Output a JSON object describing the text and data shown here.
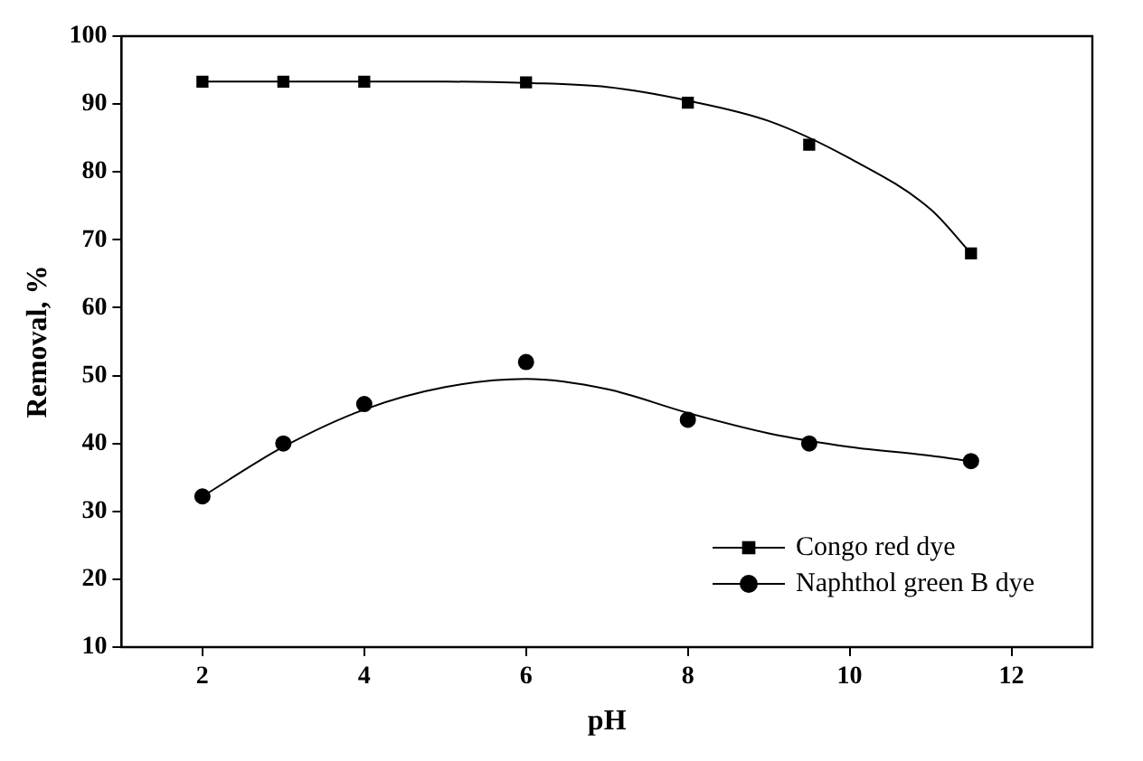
{
  "chart_data": {
    "type": "scatter",
    "xlabel": "pH",
    "ylabel": "Removal, %",
    "xlim": [
      1,
      13
    ],
    "xticks": [
      2,
      4,
      6,
      8,
      10,
      12
    ],
    "ylim": [
      10,
      100
    ],
    "yticks": [
      10,
      20,
      30,
      40,
      50,
      60,
      70,
      80,
      90,
      100
    ],
    "grid": false,
    "legend": "bottom right",
    "series": [
      {
        "name": "Congo red dye",
        "color": "#000000",
        "marker": "square",
        "x": [
          2,
          3,
          4,
          6,
          8,
          9.5,
          11.5
        ],
        "values": [
          93.3,
          93.3,
          93.3,
          93.2,
          90.2,
          84,
          68
        ]
      },
      {
        "name": "Naphthol green B dye",
        "color": "#000000",
        "marker": "circle",
        "x": [
          2,
          3,
          4,
          6,
          8,
          9.5,
          11.5
        ],
        "values": [
          32.2,
          40,
          45.8,
          52,
          43.5,
          40,
          37.4
        ]
      },
      {
        "type": "line",
        "color": "#000000",
        "marker": "none",
        "x": [
          2,
          3,
          4,
          5,
          6,
          7,
          8,
          9,
          10,
          11,
          11.5
        ],
        "values": [
          93.3,
          93.3,
          93.3,
          93.3,
          93.1,
          92.5,
          90.5,
          87.5,
          82,
          74.5,
          68
        ]
      },
      {
        "type": "line",
        "color": "#000000",
        "marker": "none",
        "x": [
          2,
          3,
          4,
          5,
          6,
          7,
          8,
          9,
          10,
          11,
          11.5
        ],
        "values": [
          32.2,
          39.5,
          45,
          48.3,
          49.5,
          48,
          44.5,
          41.5,
          39.5,
          38.2,
          37.4
        ]
      }
    ]
  }
}
